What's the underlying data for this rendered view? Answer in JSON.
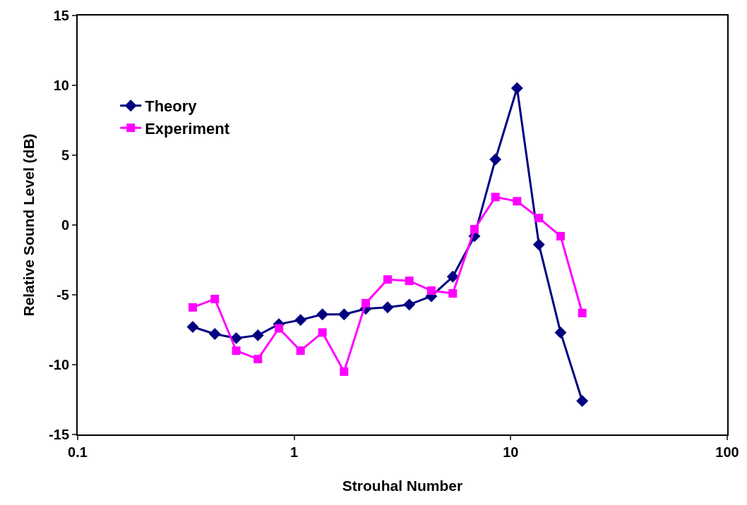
{
  "chart_data": {
    "type": "line",
    "xlabel": "Strouhal Number",
    "ylabel": "Relative Sound Level (dB)",
    "log": "x",
    "x": [
      0.34,
      0.43,
      0.54,
      0.68,
      0.85,
      1.07,
      1.35,
      1.7,
      2.14,
      2.7,
      3.4,
      4.3,
      5.4,
      6.8,
      8.5,
      10.7,
      13.5,
      17,
      21.4
    ],
    "series": [
      {
        "name": "Theory",
        "color": "#000080",
        "marker": "diamond",
        "values": [
          -7.3,
          -7.8,
          -8.1,
          -7.9,
          -7.1,
          -6.8,
          -6.4,
          -6.4,
          -6.0,
          -5.9,
          -5.7,
          -5.1,
          -3.7,
          -0.8,
          4.7,
          9.8,
          -1.4,
          -7.7,
          -12.6
        ]
      },
      {
        "name": "Experiment",
        "color": "#ff00ff",
        "marker": "square",
        "values": [
          -5.9,
          -5.3,
          -9.0,
          -9.6,
          -7.4,
          -9.0,
          -7.7,
          -10.5,
          -5.6,
          -3.9,
          -4.0,
          -4.7,
          -4.9,
          -0.3,
          2.0,
          1.7,
          0.5,
          -0.8,
          -6.3
        ]
      }
    ],
    "xlim": [
      0.1,
      100
    ],
    "xticks": [
      0.1,
      1,
      10,
      100
    ],
    "ylim": [
      -15,
      15
    ],
    "yticks": [
      -15,
      -10,
      -5,
      0,
      5,
      10,
      15
    ],
    "legend": "top left",
    "line_style": "solid"
  }
}
